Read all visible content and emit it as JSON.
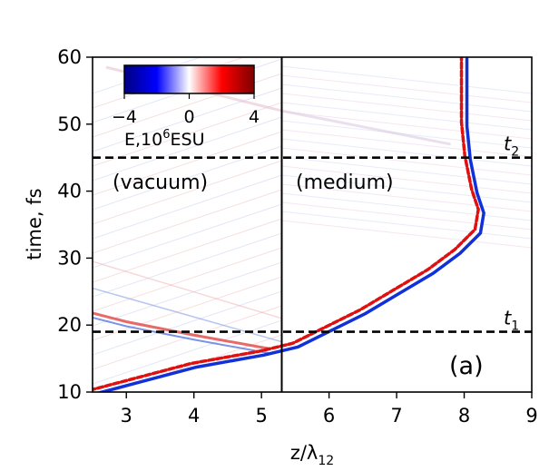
{
  "chart_data": {
    "type": "heatmap",
    "xlabel_main": "z/λ",
    "xlabel_sub": "12",
    "ylabel": "time, fs",
    "xlim": [
      2.5,
      9
    ],
    "ylim": [
      10,
      60
    ],
    "x_ticks": [
      3,
      4,
      5,
      6,
      7,
      8,
      9
    ],
    "y_ticks": [
      10,
      20,
      30,
      40,
      50,
      60
    ],
    "colorbar": {
      "label_main": "E,10",
      "label_sup": "6",
      "label_unit": "ESU",
      "min": -4,
      "max": 4,
      "ticks": [
        -4,
        0,
        4
      ],
      "tick_labels": [
        "−4",
        "0",
        "4"
      ],
      "colormap": "seismic",
      "colors": [
        "#00007f",
        "#0000ff",
        "#ffffff",
        "#ff0000",
        "#7f0000"
      ]
    },
    "boundary": {
      "z": 5.3,
      "color": "#000000"
    },
    "hlines": [
      {
        "t": 45,
        "label": "t",
        "sub": "2",
        "style": "dashed"
      },
      {
        "t": 19,
        "label": "t",
        "sub": "1",
        "style": "dashed"
      }
    ],
    "region_labels": {
      "left": "(vacuum)",
      "right": "(medium)"
    },
    "panel_label": "(a)",
    "pulse_track": [
      {
        "t": 10.0,
        "z": 2.5
      },
      {
        "t": 14.0,
        "z": 4.0
      },
      {
        "t": 15.8,
        "z": 5.0
      },
      {
        "t": 17.0,
        "z": 5.5
      },
      {
        "t": 19.0,
        "z": 5.9
      },
      {
        "t": 22.0,
        "z": 6.5
      },
      {
        "t": 25.0,
        "z": 7.0
      },
      {
        "t": 28.0,
        "z": 7.5
      },
      {
        "t": 31.0,
        "z": 7.9
      },
      {
        "t": 34.0,
        "z": 8.2
      },
      {
        "t": 37.0,
        "z": 8.25
      },
      {
        "t": 40.0,
        "z": 8.15
      },
      {
        "t": 45.0,
        "z": 8.05
      },
      {
        "t": 50.0,
        "z": 8.0
      },
      {
        "t": 55.0,
        "z": 8.0
      },
      {
        "t": 60.0,
        "z": 8.0
      }
    ],
    "reflected_track": [
      {
        "t": 16.5,
        "z": 5.1
      },
      {
        "t": 18.5,
        "z": 4.0
      },
      {
        "t": 20.5,
        "z": 3.0
      },
      {
        "t": 21.8,
        "z": 2.5
      }
    ]
  }
}
